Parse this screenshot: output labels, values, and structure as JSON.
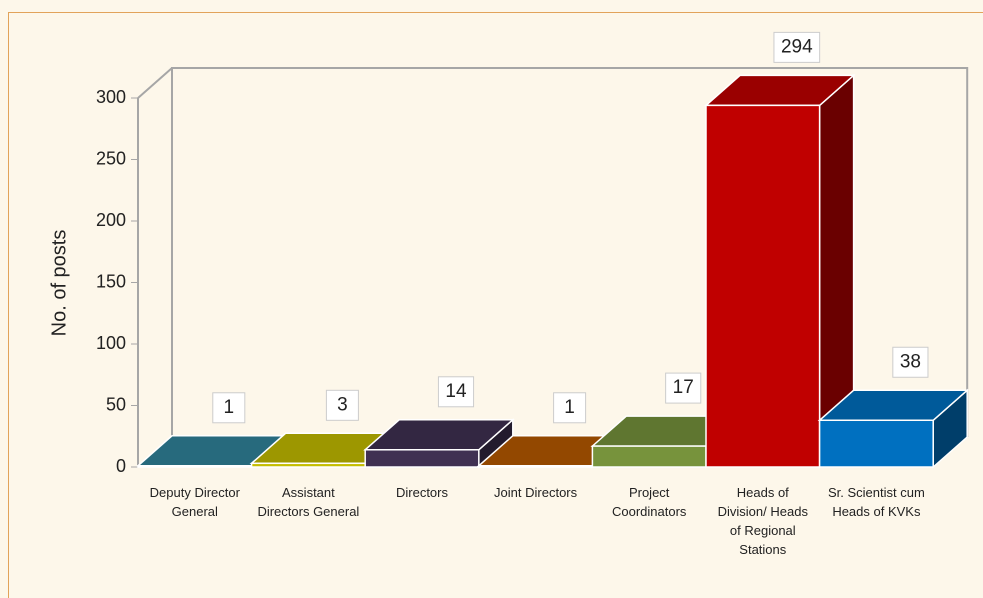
{
  "chart_data": {
    "type": "bar3d",
    "ylabel": "No. of posts",
    "categories": [
      "Deputy Director General",
      "Assistant Directors General",
      "Directors",
      "Joint Directors",
      "Project Coordinators",
      "Heads of Division/ Heads of Regional Stations",
      "Sr. Scientist cum Heads of KVKs"
    ],
    "values": [
      1,
      3,
      14,
      1,
      17,
      294,
      38
    ],
    "colors": [
      "#31859c",
      "#c4bd00",
      "#403152",
      "#b85a00",
      "#77933c",
      "#c00000",
      "#0070c0"
    ],
    "ylim": [
      0,
      300
    ],
    "yticks": [
      0,
      50,
      100,
      150,
      200,
      250,
      300
    ],
    "grid": false
  }
}
